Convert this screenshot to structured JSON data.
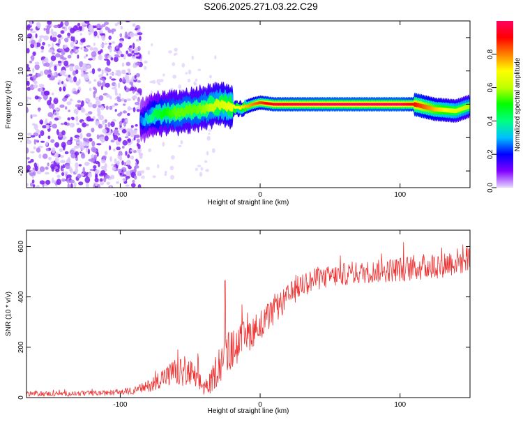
{
  "title": "S206.2025.271.03.22.C29",
  "chart_data": [
    {
      "type": "heatmap",
      "title": "S206.2025.271.03.22.C29",
      "xlabel": "Height of straight line (km)",
      "ylabel": "Frequency (Hz)",
      "xlim": [
        -167,
        150
      ],
      "ylim": [
        -25,
        25
      ],
      "xticks": [
        -100,
        0,
        100
      ],
      "xtick_labels": [
        "-100",
        "0",
        "100"
      ],
      "yticks": [
        -20,
        -10,
        0,
        10,
        20
      ],
      "ytick_labels": [
        "-20",
        "-10",
        "0",
        "10",
        "20"
      ],
      "colorbar": {
        "label": "Normalized spectral amplitude",
        "range": [
          0,
          1
        ],
        "ticks": [
          0.0,
          0.2,
          0.4,
          0.6,
          0.8
        ],
        "tick_labels": [
          "0.0",
          "0.2",
          "0.4",
          "0.6",
          "0.8"
        ],
        "colormap": [
          "#e8d8ff",
          "#8000ff",
          "#0000ff",
          "#00c0ff",
          "#00ff80",
          "#00ff00",
          "#c0ff00",
          "#ffff00",
          "#ff8000",
          "#ff0000",
          "#ff0060"
        ]
      },
      "ridge": {
        "description": "dominant frequency vs height",
        "x": [
          -85,
          -75,
          -60,
          -45,
          -35,
          -25,
          -15,
          -5,
          0,
          10,
          50,
          100,
          110,
          125,
          140,
          150
        ],
        "freq": [
          -5,
          -3,
          -2.5,
          -1.5,
          -0.5,
          0,
          -1.5,
          0,
          0.5,
          0,
          0,
          0,
          0,
          -1.5,
          -2,
          -0.5
        ],
        "amplitude": [
          0.25,
          0.45,
          0.55,
          0.55,
          0.6,
          0.65,
          0.7,
          0.8,
          0.85,
          0.95,
          1.0,
          1.0,
          0.9,
          0.75,
          0.65,
          0.6
        ]
      },
      "noise_region_x": [
        -167,
        -85
      ]
    },
    {
      "type": "line",
      "xlabel": "Height of straight line (km)",
      "ylabel": "SNR (10 * v/v)",
      "xlim": [
        -167,
        150
      ],
      "ylim": [
        0,
        665
      ],
      "xticks": [
        -100,
        0,
        100
      ],
      "xtick_labels": [
        "-100",
        "0",
        "100"
      ],
      "yticks": [
        0,
        200,
        400,
        600
      ],
      "ytick_labels": [
        "0",
        "200",
        "400",
        "600"
      ],
      "series": [
        {
          "name": "SNR",
          "color": "#ee3333",
          "x": [
            -167,
            -140,
            -110,
            -100,
            -90,
            -80,
            -70,
            -60,
            -50,
            -45,
            -40,
            -35,
            -30,
            -25,
            -20,
            -10,
            0,
            10,
            20,
            30,
            40,
            60,
            80,
            100,
            120,
            140,
            150
          ],
          "y": [
            15,
            15,
            18,
            22,
            28,
            45,
            80,
            100,
            95,
            70,
            40,
            60,
            130,
            170,
            190,
            240,
            290,
            340,
            400,
            450,
            470,
            490,
            500,
            510,
            520,
            540,
            550
          ],
          "noise": [
            10,
            10,
            10,
            12,
            15,
            25,
            40,
            55,
            60,
            50,
            35,
            45,
            80,
            90,
            80,
            70,
            60,
            55,
            50,
            50,
            45,
            45,
            45,
            50,
            55,
            55,
            55
          ],
          "spike": [
            -25,
            465
          ]
        }
      ]
    }
  ]
}
